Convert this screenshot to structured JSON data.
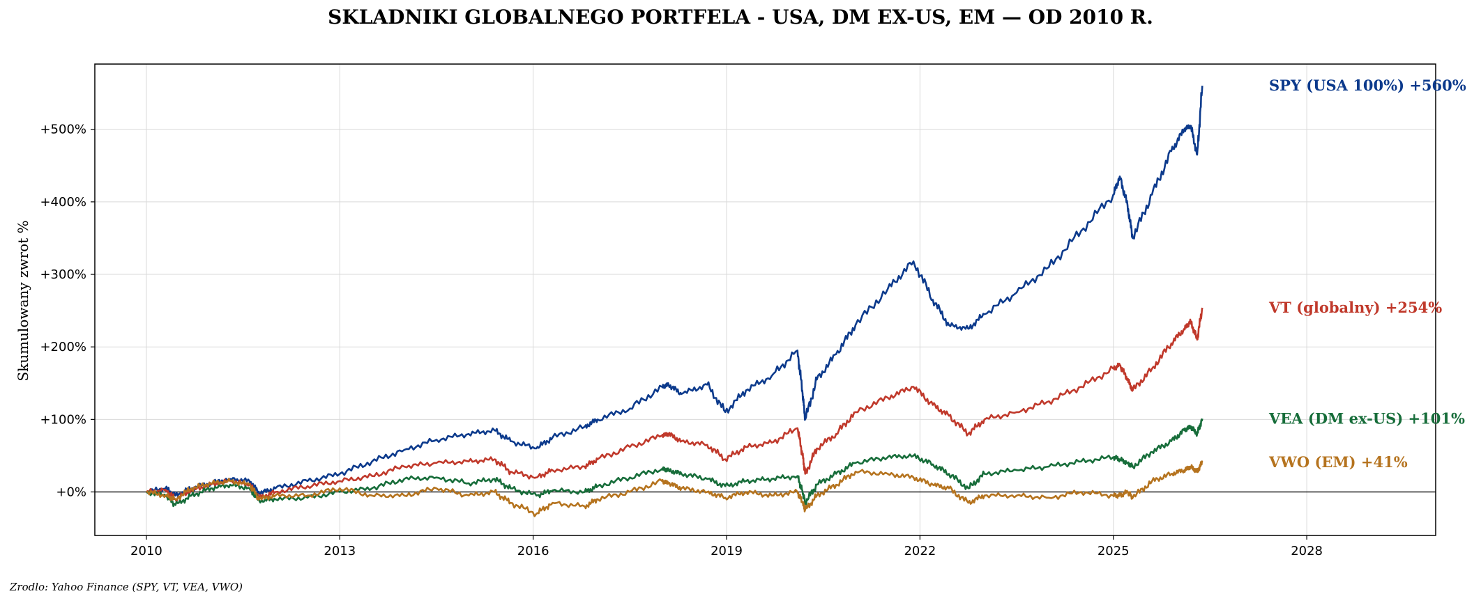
{
  "chart_data": {
    "type": "line",
    "title": "SKLADNIKI GLOBALNEGO PORTFELA - USA, DM EX-US, EM — OD 2010 R.",
    "xlabel": "",
    "ylabel": "Skumulowany zwrot %",
    "xlim": [
      2009.2,
      2030.0
    ],
    "ylim": [
      -60,
      590
    ],
    "xticks": [
      2010,
      2013,
      2016,
      2019,
      2022,
      2025,
      2028
    ],
    "xtick_labels": [
      "2010",
      "2013",
      "2016",
      "2019",
      "2022",
      "2025",
      "2028"
    ],
    "yticks": [
      0,
      100,
      200,
      300,
      400,
      500
    ],
    "ytick_labels": [
      "+0%",
      "+100%",
      "+200%",
      "+300%",
      "+400%",
      "+500%"
    ],
    "grid": true,
    "zero_line": true,
    "source": "Zrodlo: Yahoo Finance (SPY, VT, VEA, VWO)",
    "series": [
      {
        "name": "SPY (USA 100%)",
        "end_label": "SPY (USA 100%)  +560%",
        "color": "#0c3a8c",
        "x": [
          2010.0,
          2010.3,
          2010.45,
          2010.7,
          2011.0,
          2011.3,
          2011.6,
          2011.75,
          2012.0,
          2012.5,
          2013.0,
          2013.5,
          2014.0,
          2014.5,
          2015.0,
          2015.4,
          2015.65,
          2016.05,
          2016.3,
          2016.8,
          2017.0,
          2017.5,
          2018.0,
          2018.1,
          2018.3,
          2018.7,
          2018.98,
          2019.3,
          2019.7,
          2020.1,
          2020.18,
          2020.22,
          2020.4,
          2020.7,
          2021.0,
          2021.5,
          2021.9,
          2022.2,
          2022.45,
          2022.75,
          2023.0,
          2023.5,
          2024.0,
          2024.5,
          2025.0,
          2025.1,
          2025.22,
          2025.3,
          2025.6,
          2025.9,
          2026.1,
          2026.2,
          2026.3,
          2026.38
        ],
        "y": [
          0,
          5,
          -5,
          5,
          12,
          18,
          15,
          -2,
          5,
          15,
          25,
          42,
          58,
          72,
          80,
          85,
          70,
          60,
          75,
          90,
          100,
          115,
          145,
          148,
          135,
          148,
          110,
          140,
          160,
          195,
          135,
          100,
          155,
          190,
          230,
          280,
          318,
          265,
          230,
          225,
          245,
          275,
          310,
          360,
          410,
          435,
          395,
          350,
          410,
          470,
          500,
          505,
          465,
          560
        ]
      },
      {
        "name": "VT (globalny)",
        "end_label": "VT (globalny)  +254%",
        "color": "#c0392b",
        "x": [
          2010.0,
          2010.3,
          2010.45,
          2010.7,
          2011.0,
          2011.3,
          2011.6,
          2011.75,
          2012.0,
          2012.5,
          2013.0,
          2013.5,
          2014.0,
          2014.5,
          2015.0,
          2015.4,
          2015.65,
          2016.05,
          2016.3,
          2016.8,
          2017.0,
          2017.5,
          2018.0,
          2018.1,
          2018.3,
          2018.7,
          2018.98,
          2019.3,
          2019.7,
          2020.1,
          2020.18,
          2020.22,
          2020.4,
          2020.7,
          2021.0,
          2021.5,
          2021.9,
          2022.2,
          2022.45,
          2022.75,
          2023.0,
          2023.5,
          2024.0,
          2024.5,
          2025.0,
          2025.1,
          2025.22,
          2025.3,
          2025.6,
          2025.9,
          2026.1,
          2026.2,
          2026.3,
          2026.38
        ],
        "y": [
          0,
          3,
          -10,
          2,
          10,
          15,
          10,
          -8,
          0,
          8,
          15,
          22,
          35,
          40,
          42,
          45,
          28,
          20,
          30,
          35,
          45,
          62,
          78,
          80,
          70,
          65,
          45,
          62,
          68,
          88,
          50,
          25,
          60,
          80,
          110,
          130,
          145,
          120,
          105,
          80,
          100,
          110,
          125,
          145,
          170,
          175,
          155,
          140,
          170,
          205,
          225,
          235,
          210,
          254
        ]
      },
      {
        "name": "VEA (DM ex-US)",
        "end_label": "VEA (DM ex-US)  +101%",
        "color": "#176d3a",
        "x": [
          2010.0,
          2010.3,
          2010.45,
          2010.7,
          2011.0,
          2011.3,
          2011.6,
          2011.75,
          2012.0,
          2012.5,
          2013.0,
          2013.5,
          2014.0,
          2014.5,
          2015.0,
          2015.4,
          2015.65,
          2016.05,
          2016.3,
          2016.8,
          2017.0,
          2017.5,
          2018.0,
          2018.1,
          2018.3,
          2018.7,
          2018.98,
          2019.3,
          2019.7,
          2020.1,
          2020.18,
          2020.22,
          2020.4,
          2020.7,
          2021.0,
          2021.5,
          2021.9,
          2022.2,
          2022.45,
          2022.75,
          2023.0,
          2023.5,
          2024.0,
          2024.5,
          2025.0,
          2025.1,
          2025.22,
          2025.3,
          2025.6,
          2025.9,
          2026.1,
          2026.2,
          2026.3,
          2026.38
        ],
        "y": [
          0,
          -5,
          -18,
          -5,
          5,
          10,
          5,
          -12,
          -10,
          -8,
          0,
          5,
          18,
          20,
          12,
          18,
          5,
          -5,
          2,
          0,
          8,
          20,
          32,
          30,
          25,
          18,
          8,
          15,
          18,
          22,
          0,
          -15,
          10,
          25,
          40,
          48,
          50,
          38,
          25,
          5,
          25,
          30,
          35,
          42,
          48,
          45,
          40,
          35,
          55,
          70,
          85,
          90,
          80,
          101
        ]
      },
      {
        "name": "VWO (EM)",
        "end_label": "VWO (EM)  +41%",
        "color": "#b5731e",
        "x": [
          2010.0,
          2010.3,
          2010.45,
          2010.7,
          2011.0,
          2011.3,
          2011.6,
          2011.75,
          2012.0,
          2012.5,
          2013.0,
          2013.5,
          2014.0,
          2014.5,
          2015.0,
          2015.4,
          2015.65,
          2016.05,
          2016.3,
          2016.8,
          2017.0,
          2017.5,
          2018.0,
          2018.1,
          2018.3,
          2018.7,
          2018.98,
          2019.3,
          2019.7,
          2020.1,
          2020.18,
          2020.22,
          2020.4,
          2020.7,
          2021.0,
          2021.5,
          2021.9,
          2022.2,
          2022.45,
          2022.75,
          2023.0,
          2023.5,
          2024.0,
          2024.5,
          2025.0,
          2025.1,
          2025.22,
          2025.3,
          2025.6,
          2025.9,
          2026.1,
          2026.2,
          2026.3,
          2026.38
        ],
        "y": [
          0,
          -5,
          -10,
          5,
          12,
          15,
          10,
          -10,
          -5,
          -5,
          5,
          -5,
          -5,
          5,
          -5,
          0,
          -15,
          -30,
          -15,
          -20,
          -10,
          0,
          15,
          12,
          5,
          0,
          -8,
          0,
          -5,
          0,
          -15,
          -25,
          -5,
          10,
          28,
          25,
          20,
          10,
          5,
          -15,
          -5,
          -5,
          -8,
          0,
          -5,
          -5,
          0,
          -8,
          15,
          25,
          30,
          35,
          28,
          41
        ]
      }
    ]
  }
}
